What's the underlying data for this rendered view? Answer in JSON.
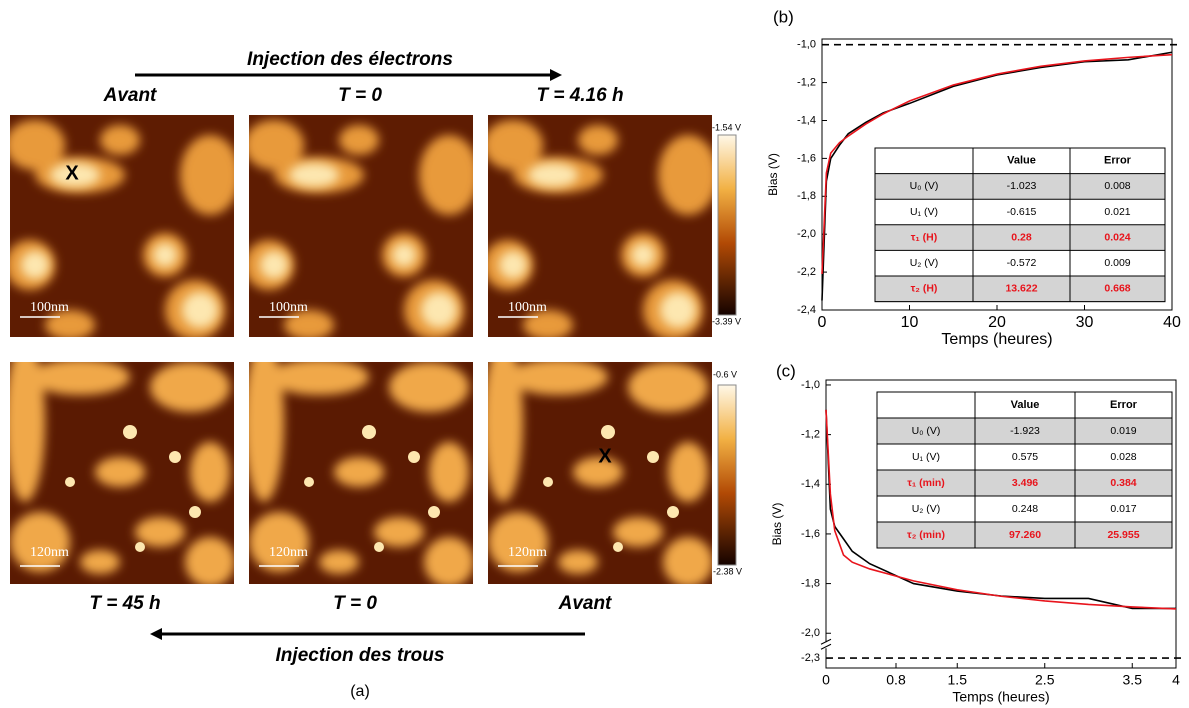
{
  "panel_a": {
    "top_arrow_label": "Injection des électrons",
    "top_labels": [
      "Avant",
      "T = 0",
      "T = 4.16 h"
    ],
    "top_scale": "100nm",
    "top_colorbar": [
      "-1.54 V",
      "-3.39 V"
    ],
    "bottom_scale": "120nm",
    "bottom_colorbar": [
      "-0.6 V",
      "-2.38 V"
    ],
    "bottom_labels": [
      "T = 45 h",
      "T = 0",
      "Avant"
    ],
    "bottom_arrow_label": "Injection des trous",
    "marker": "X",
    "caption": "(a)"
  },
  "chart_data": [
    {
      "type": "line",
      "panel_label": "(b)",
      "y_label": "Bias (V)",
      "x_label": "Temps (heures)",
      "x": [
        0,
        0.5,
        1,
        2,
        3,
        5,
        7,
        10,
        15,
        20,
        25,
        30,
        35,
        40
      ],
      "series": [
        {
          "name": "data",
          "color": "#000000",
          "values": [
            -2.35,
            -1.72,
            -1.6,
            -1.53,
            -1.47,
            -1.41,
            -1.36,
            -1.31,
            -1.22,
            -1.16,
            -1.12,
            -1.09,
            -1.08,
            -1.04
          ]
        },
        {
          "name": "fit",
          "color": "#e8141c",
          "values": [
            -2.21,
            -1.677,
            -1.572,
            -1.517,
            -1.482,
            -1.419,
            -1.365,
            -1.297,
            -1.213,
            -1.155,
            -1.114,
            -1.086,
            -1.067,
            -1.053
          ]
        }
      ],
      "reference_line": -1.0,
      "xlim": [
        0,
        40
      ],
      "xticks": [
        0,
        10,
        20,
        30,
        40
      ],
      "ylim": [
        -2.4,
        -0.97
      ],
      "yticks": [
        {
          "value": -1.0,
          "label": "-1,0"
        },
        {
          "value": -1.2,
          "label": "-1,2"
        },
        {
          "value": -1.4,
          "label": "-1,4"
        },
        {
          "value": -1.6,
          "label": "-1,6"
        },
        {
          "value": -1.8,
          "label": "-1,8"
        },
        {
          "value": -2.0,
          "label": "-2,0"
        },
        {
          "value": -2.2,
          "label": "-2,2"
        },
        {
          "value": -2.4,
          "label": "-2,4"
        }
      ],
      "table": {
        "columns": [
          "Value",
          "Error"
        ],
        "rows": [
          {
            "cells": [
              "U₀ (V)",
              "-1.023",
              "0.008"
            ],
            "color": "#000000"
          },
          {
            "cells": [
              "U₁ (V)",
              "-0.615",
              "0.021"
            ],
            "color": "#000000"
          },
          {
            "cells": [
              "τ₁ (H)",
              "0.28",
              "0.024"
            ],
            "color": "#e8141c"
          },
          {
            "cells": [
              "U₂ (V)",
              "-0.572",
              "0.009"
            ],
            "color": "#000000"
          },
          {
            "cells": [
              "τ₂ (H)",
              "13.622",
              "0.668"
            ],
            "color": "#e8141c"
          }
        ]
      }
    },
    {
      "type": "line",
      "panel_label": "(c)",
      "y_label": "Bias (V)",
      "x_label": "Temps (heures)",
      "x": [
        0,
        0.05,
        0.1,
        0.2,
        0.3,
        0.5,
        1,
        1.5,
        2,
        2.5,
        3,
        3.5,
        4
      ],
      "series": [
        {
          "name": "data",
          "color": "#000000",
          "values": [
            -1.1,
            -1.5,
            -1.57,
            -1.62,
            -1.67,
            -1.72,
            -1.8,
            -1.83,
            -1.85,
            -1.86,
            -1.86,
            -1.9,
            -1.9
          ]
        },
        {
          "name": "fit",
          "color": "#e8141c",
          "values": [
            -1.1,
            -1.439,
            -1.587,
            -1.685,
            -1.714,
            -1.741,
            -1.789,
            -1.825,
            -1.851,
            -1.87,
            -1.884,
            -1.894,
            -1.902
          ]
        }
      ],
      "reference_line": -2.3,
      "axis_break": [
        -2.0,
        -2.2
      ],
      "xlim": [
        0,
        4
      ],
      "xticks": [
        0,
        0.8,
        1.5,
        2.5,
        3.5,
        4
      ],
      "ylim": [
        -2.34,
        -0.98
      ],
      "yticks": [
        {
          "value": -1.0,
          "label": "-1,0"
        },
        {
          "value": -1.2,
          "label": "-1,2"
        },
        {
          "value": -1.4,
          "label": "-1,4"
        },
        {
          "value": -1.6,
          "label": "-1,6"
        },
        {
          "value": -1.8,
          "label": "-1,8"
        },
        {
          "value": -2.0,
          "label": "-2,0"
        },
        {
          "value": -2.3,
          "label": "-2,3"
        }
      ],
      "table": {
        "columns": [
          "Value",
          "Error"
        ],
        "rows": [
          {
            "cells": [
              "U₀ (V)",
              "-1.923",
              "0.019"
            ],
            "color": "#000000"
          },
          {
            "cells": [
              "U₁ (V)",
              "0.575",
              "0.028"
            ],
            "color": "#000000"
          },
          {
            "cells": [
              "τ₁ (min)",
              "3.496",
              "0.384"
            ],
            "color": "#e8141c"
          },
          {
            "cells": [
              "U₂ (V)",
              "0.248",
              "0.017"
            ],
            "color": "#000000"
          },
          {
            "cells": [
              "τ₂ (min)",
              "97.260",
              "25.955"
            ],
            "color": "#e8141c"
          }
        ]
      }
    }
  ]
}
